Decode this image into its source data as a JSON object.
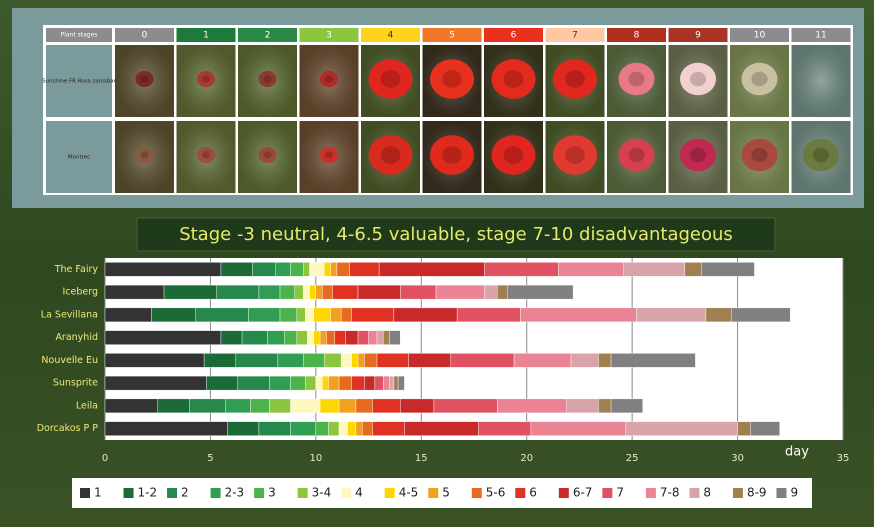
{
  "photo_table": {
    "header_label": "Plant stages",
    "stages": [
      "0",
      "1",
      "2",
      "3",
      "4",
      "5",
      "6",
      "7",
      "8",
      "9",
      "10",
      "11"
    ],
    "stage_colors": [
      "#8c8c8c",
      "#1e7a3c",
      "#2a8a45",
      "#8cc63f",
      "#ffd21f",
      "#f07828",
      "#e8321e",
      "#ffc8a0",
      "#b03020",
      "#a83424",
      "#8c8c8c",
      "#8c8c8c"
    ],
    "row_labels": [
      "Sunshine FR Rosa sansibar",
      "Montrec"
    ]
  },
  "caption": "Stage -3 neutral, 4-6.5 valuable, stage 7-10 disadvantageous",
  "chart_data": {
    "type": "bar",
    "orientation": "horizontal",
    "stacked": true,
    "categories": [
      "The Fairy",
      "Iceberg",
      "La Sevillana",
      "Aranyhid",
      "Nouvelle Eu",
      "Sunsprite",
      "Leila",
      "Dorcakos P P"
    ],
    "xlabel": "day",
    "xlim": [
      0,
      35
    ],
    "xticks": [
      0,
      5,
      10,
      15,
      20,
      25,
      30,
      35
    ],
    "grid": true,
    "legend": "bottom",
    "series": [
      {
        "name": "1",
        "color": "#333333",
        "values": [
          5.5,
          2.8,
          2.2,
          5.5,
          4.7,
          4.8,
          2.5,
          5.8
        ]
      },
      {
        "name": "1-2",
        "color": "#1c6a38",
        "values": [
          1.5,
          2.5,
          2.1,
          1.0,
          1.5,
          1.5,
          1.5,
          1.5
        ]
      },
      {
        "name": "2",
        "color": "#26884a",
        "values": [
          1.1,
          2.0,
          2.5,
          1.2,
          2.0,
          1.5,
          1.7,
          1.5
        ]
      },
      {
        "name": "2-3",
        "color": "#2f9e52",
        "values": [
          0.7,
          1.0,
          1.5,
          0.8,
          1.2,
          1.0,
          1.2,
          1.2
        ]
      },
      {
        "name": "3",
        "color": "#4cb24c",
        "values": [
          0.6,
          0.7,
          0.8,
          0.6,
          1.0,
          0.7,
          0.9,
          0.6
        ]
      },
      {
        "name": "3-4",
        "color": "#8cc63f",
        "values": [
          0.3,
          0.4,
          0.4,
          0.5,
          0.8,
          0.5,
          1.0,
          0.5
        ]
      },
      {
        "name": "4",
        "color": "#fff7c0",
        "values": [
          0.7,
          0.3,
          0.4,
          0.3,
          0.5,
          0.3,
          1.4,
          0.4
        ]
      },
      {
        "name": "4-5",
        "color": "#ffd700",
        "values": [
          0.3,
          0.3,
          0.8,
          0.3,
          0.3,
          0.3,
          0.9,
          0.4
        ]
      },
      {
        "name": "5",
        "color": "#f2a020",
        "values": [
          0.3,
          0.3,
          0.5,
          0.3,
          0.3,
          0.5,
          0.8,
          0.3
        ]
      },
      {
        "name": "5-6",
        "color": "#e86a20",
        "values": [
          0.6,
          0.5,
          0.5,
          0.4,
          0.6,
          0.6,
          0.8,
          0.5
        ]
      },
      {
        "name": "6",
        "color": "#e03222",
        "values": [
          1.4,
          1.2,
          2.0,
          0.5,
          1.5,
          0.6,
          1.3,
          1.5
        ]
      },
      {
        "name": "6-7",
        "color": "#c82a2a",
        "values": [
          5.0,
          2.0,
          3.0,
          0.6,
          2.0,
          0.5,
          1.6,
          3.5
        ]
      },
      {
        "name": "7",
        "color": "#e05262",
        "values": [
          3.5,
          1.7,
          3.0,
          0.5,
          3.0,
          0.4,
          3.0,
          2.5
        ]
      },
      {
        "name": "7-8",
        "color": "#ea8494",
        "values": [
          3.1,
          2.3,
          5.5,
          0.4,
          2.7,
          0.3,
          3.3,
          4.5
        ]
      },
      {
        "name": "8",
        "color": "#d8a4aa",
        "values": [
          2.9,
          0.6,
          3.3,
          0.3,
          1.3,
          0.2,
          1.5,
          5.3
        ]
      },
      {
        "name": "8-9",
        "color": "#a08050",
        "values": [
          0.8,
          0.5,
          1.2,
          0.3,
          0.6,
          0.2,
          0.6,
          0.6
        ]
      },
      {
        "name": "9",
        "color": "#808080",
        "values": [
          2.5,
          3.1,
          2.8,
          0.5,
          4.0,
          0.3,
          1.5,
          1.4
        ]
      }
    ]
  }
}
